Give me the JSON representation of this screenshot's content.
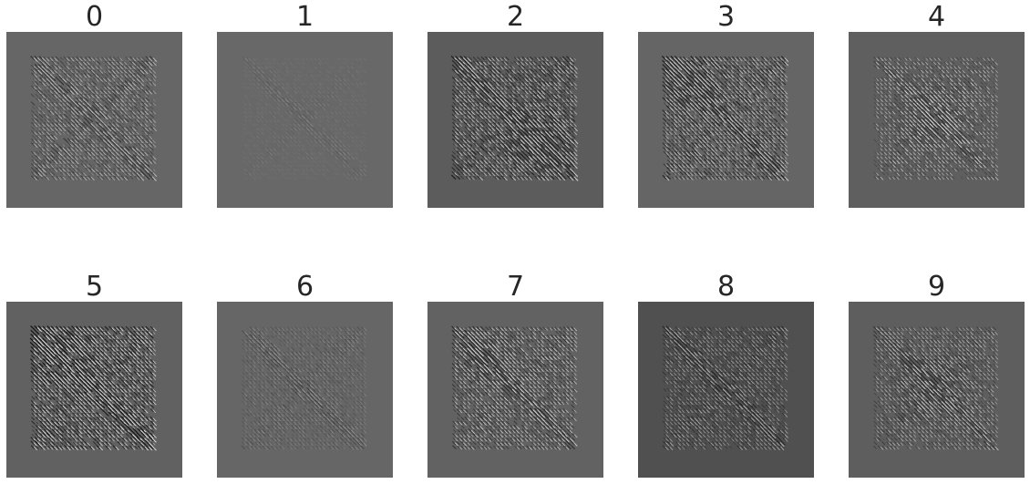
{
  "figure": {
    "panels": [
      {
        "label": "0",
        "background": "#666666",
        "dark_value": 54,
        "light_value": 190,
        "intensity": 1.0,
        "hotspot": "none",
        "edge_dim": 0.1
      },
      {
        "label": "1",
        "background": "#686868",
        "dark_value": 78,
        "light_value": 150,
        "intensity": 0.55,
        "hotspot": "none",
        "edge_dim": 0.2
      },
      {
        "label": "2",
        "background": "#5c5c5c",
        "dark_value": 30,
        "light_value": 205,
        "intensity": 1.0,
        "hotspot": "bottom-right",
        "edge_dim": 0.05
      },
      {
        "label": "3",
        "background": "#656565",
        "dark_value": 30,
        "light_value": 200,
        "intensity": 0.95,
        "hotspot": "top-left",
        "edge_dim": 0.05
      },
      {
        "label": "4",
        "background": "#5f5f5f",
        "dark_value": 45,
        "light_value": 215,
        "intensity": 0.75,
        "hotspot": "center",
        "edge_dim": 0.4
      },
      {
        "label": "5",
        "background": "#616161",
        "dark_value": 20,
        "light_value": 220,
        "intensity": 1.0,
        "hotspot": "top-left",
        "edge_dim": 0.05
      },
      {
        "label": "6",
        "background": "#666666",
        "dark_value": 60,
        "light_value": 160,
        "intensity": 0.7,
        "hotspot": "none",
        "edge_dim": 0.2
      },
      {
        "label": "7",
        "background": "#626262",
        "dark_value": 35,
        "light_value": 215,
        "intensity": 0.8,
        "hotspot": "top-left",
        "edge_dim": 0.15
      },
      {
        "label": "8",
        "background": "#505050",
        "dark_value": 35,
        "light_value": 180,
        "intensity": 0.85,
        "hotspot": "none",
        "edge_dim": 0.1
      },
      {
        "label": "9",
        "background": "#5e5e5e",
        "dark_value": 40,
        "light_value": 200,
        "intensity": 0.8,
        "hotspot": "center",
        "edge_dim": 0.25
      }
    ]
  }
}
